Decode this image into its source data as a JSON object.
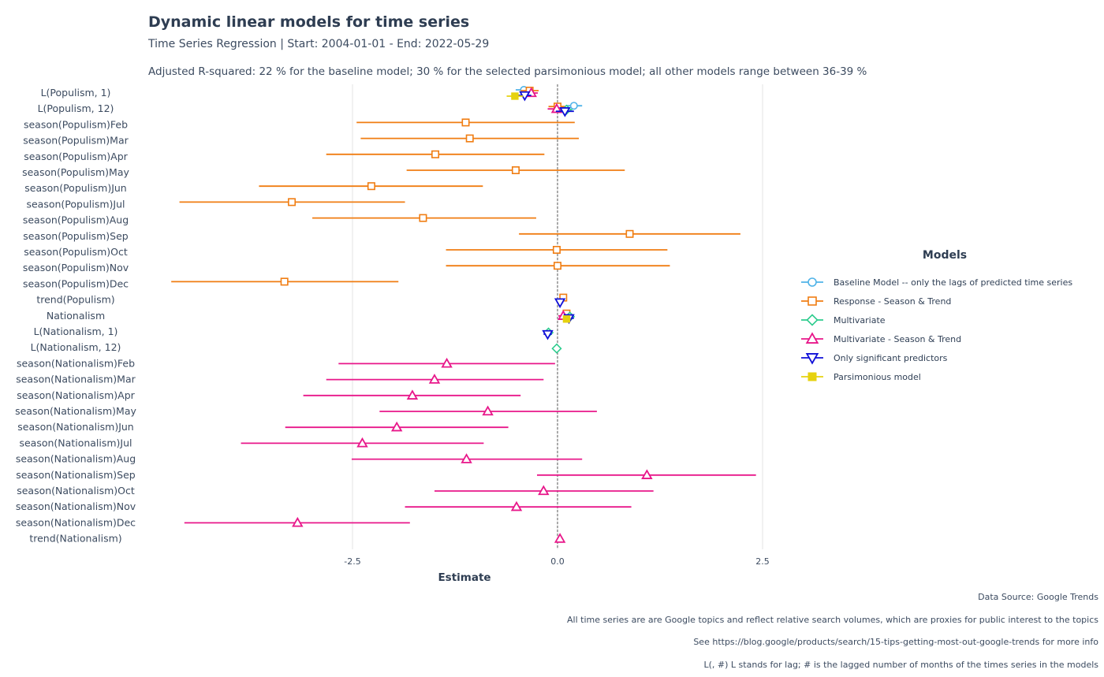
{
  "title": "Dynamic linear models for time series",
  "subtitle": "Time Series Regression | Start: 2004-01-01 - End: 2022-05-29",
  "subtitle2": "Adjusted R-squared: 22 % for the baseline model; 30 % for the selected parsimonious model; all other models range between 36-39 %",
  "captions": [
    "Data Source: Google Trends",
    "All time series are are Google topics and reflect relative search volumes, which are proxies for public interest to the topics",
    "See https://blog.google/products/search/15-tips-getting-most-out-google-trends for more info",
    "L(, #) L stands for lag; # is the lagged number of months of the times series in the models"
  ],
  "legend": {
    "title": "Models",
    "items": [
      {
        "name": "Baseline Model -- only the lags of predicted time series",
        "color": "#4fb3e8",
        "shape": "circle"
      },
      {
        "name": "Response - Season & Trend",
        "color": "#f07d12",
        "shape": "square"
      },
      {
        "name": "Multivariate",
        "color": "#2ecc8e",
        "shape": "diamond"
      },
      {
        "name": "Multivariate - Season & Trend",
        "color": "#e8178a",
        "shape": "triangle-up"
      },
      {
        "name": "Only significant predictors",
        "color": "#1010d8",
        "shape": "triangle-down"
      },
      {
        "name": "Parsimonious model",
        "color": "#e6d20f",
        "shape": "square-filled"
      }
    ]
  },
  "chart_data": {
    "type": "scatter",
    "subtype": "coefficient plot with confidence intervals",
    "xlabel": "Estimate",
    "ylabel": "",
    "xlim": [
      -5.0,
      4.0
    ],
    "xticks": [
      -2.5,
      0.0,
      2.5
    ],
    "xtick_labels": [
      "-2.5",
      "0.0",
      "2.5"
    ],
    "reference_line": 0,
    "grid": "vertical major lines",
    "legend_position": "right",
    "terms": [
      "L(Populism, 1)",
      "L(Populism, 12)",
      "season(Populism)Feb",
      "season(Populism)Mar",
      "season(Populism)Apr",
      "season(Populism)May",
      "season(Populism)Jun",
      "season(Populism)Jul",
      "season(Populism)Aug",
      "season(Populism)Sep",
      "season(Populism)Oct",
      "season(Populism)Nov",
      "season(Populism)Dec",
      "trend(Populism)",
      "Nationalism",
      "L(Nationalism, 1)",
      "L(Nationalism, 12)",
      "season(Nationalism)Feb",
      "season(Nationalism)Mar",
      "season(Nationalism)Apr",
      "season(Nationalism)May",
      "season(Nationalism)Jun",
      "season(Nationalism)Jul",
      "season(Nationalism)Aug",
      "season(Nationalism)Sep",
      "season(Nationalism)Oct",
      "season(Nationalism)Nov",
      "season(Nationalism)Dec",
      "trend(Nationalism)"
    ],
    "series": [
      {
        "name": "Baseline Model -- only the lags of predicted time series",
        "points": [
          {
            "term": "L(Populism, 1)",
            "estimate": -0.41,
            "low": -0.51,
            "high": -0.31
          },
          {
            "term": "L(Populism, 12)",
            "estimate": 0.2,
            "low": 0.1,
            "high": 0.3
          }
        ]
      },
      {
        "name": "Response - Season & Trend",
        "points": [
          {
            "term": "L(Populism, 1)",
            "estimate": -0.34,
            "low": -0.45,
            "high": -0.23
          },
          {
            "term": "L(Populism, 12)",
            "estimate": 0.0,
            "low": -0.11,
            "high": 0.11
          },
          {
            "term": "season(Populism)Feb",
            "estimate": -1.12,
            "low": -2.45,
            "high": 0.21
          },
          {
            "term": "season(Populism)Mar",
            "estimate": -1.07,
            "low": -2.4,
            "high": 0.26
          },
          {
            "term": "season(Populism)Apr",
            "estimate": -1.49,
            "low": -2.82,
            "high": -0.16
          },
          {
            "term": "season(Populism)May",
            "estimate": -0.51,
            "low": -1.84,
            "high": 0.82
          },
          {
            "term": "season(Populism)Jun",
            "estimate": -2.27,
            "low": -3.64,
            "high": -0.91
          },
          {
            "term": "season(Populism)Jul",
            "estimate": -3.24,
            "low": -4.61,
            "high": -1.86
          },
          {
            "term": "season(Populism)Aug",
            "estimate": -1.64,
            "low": -2.99,
            "high": -0.26
          },
          {
            "term": "season(Populism)Sep",
            "estimate": 0.88,
            "low": -0.47,
            "high": 2.23
          },
          {
            "term": "season(Populism)Oct",
            "estimate": -0.01,
            "low": -1.36,
            "high": 1.34
          },
          {
            "term": "season(Populism)Nov",
            "estimate": 0.0,
            "low": -1.36,
            "high": 1.37
          },
          {
            "term": "season(Populism)Dec",
            "estimate": -3.33,
            "low": -4.71,
            "high": -1.94
          },
          {
            "term": "trend(Populism)",
            "estimate": 0.07,
            "low": 0.03,
            "high": 0.11
          },
          {
            "term": "Nationalism",
            "estimate": 0.11,
            "low": 0.06,
            "high": 0.16
          }
        ]
      },
      {
        "name": "Multivariate",
        "points": [
          {
            "term": "L(Populism, 12)",
            "estimate": 0.11,
            "low": 0.04,
            "high": 0.18
          },
          {
            "term": "Nationalism",
            "estimate": 0.15,
            "low": 0.1,
            "high": 0.2
          },
          {
            "term": "L(Nationalism, 1)",
            "estimate": -0.11,
            "low": -0.16,
            "high": -0.06
          },
          {
            "term": "L(Nationalism, 12)",
            "estimate": -0.01,
            "low": -0.06,
            "high": 0.04
          }
        ]
      },
      {
        "name": "Multivariate - Season & Trend",
        "points": [
          {
            "term": "L(Populism, 1)",
            "estimate": -0.32,
            "low": -0.4,
            "high": -0.24
          },
          {
            "term": "L(Populism, 12)",
            "estimate": -0.01,
            "low": -0.12,
            "high": 0.1
          },
          {
            "term": "Nationalism",
            "estimate": 0.07,
            "low": 0.01,
            "high": 0.13
          },
          {
            "term": "season(Nationalism)Feb",
            "estimate": -1.35,
            "low": -2.67,
            "high": -0.03
          },
          {
            "term": "season(Nationalism)Mar",
            "estimate": -1.5,
            "low": -2.82,
            "high": -0.17
          },
          {
            "term": "season(Nationalism)Apr",
            "estimate": -1.77,
            "low": -3.1,
            "high": -0.45
          },
          {
            "term": "season(Nationalism)May",
            "estimate": -0.85,
            "low": -2.17,
            "high": 0.48
          },
          {
            "term": "season(Nationalism)Jun",
            "estimate": -1.96,
            "low": -3.32,
            "high": -0.6
          },
          {
            "term": "season(Nationalism)Jul",
            "estimate": -2.38,
            "low": -3.86,
            "high": -0.9
          },
          {
            "term": "season(Nationalism)Aug",
            "estimate": -1.11,
            "low": -2.51,
            "high": 0.3
          },
          {
            "term": "season(Nationalism)Sep",
            "estimate": 1.09,
            "low": -0.25,
            "high": 2.42
          },
          {
            "term": "season(Nationalism)Oct",
            "estimate": -0.17,
            "low": -1.5,
            "high": 1.17
          },
          {
            "term": "season(Nationalism)Nov",
            "estimate": -0.5,
            "low": -1.86,
            "high": 0.9
          },
          {
            "term": "season(Nationalism)Dec",
            "estimate": -3.17,
            "low": -4.55,
            "high": -1.8
          },
          {
            "term": "trend(Nationalism)",
            "estimate": 0.03,
            "low": 0.0,
            "high": 0.06
          }
        ]
      },
      {
        "name": "Only significant predictors",
        "points": [
          {
            "term": "L(Populism, 1)",
            "estimate": -0.4,
            "low": -0.48,
            "high": -0.32
          },
          {
            "term": "L(Populism, 12)",
            "estimate": 0.09,
            "low": -0.02,
            "high": 0.2
          },
          {
            "term": "trend(Populism)",
            "estimate": 0.03,
            "low": -0.01,
            "high": 0.07
          },
          {
            "term": "Nationalism",
            "estimate": 0.14,
            "low": 0.08,
            "high": 0.2
          },
          {
            "term": "L(Nationalism, 1)",
            "estimate": -0.12,
            "low": -0.17,
            "high": -0.07
          }
        ]
      },
      {
        "name": "Parsimonious model",
        "points": [
          {
            "term": "L(Populism, 1)",
            "estimate": -0.52,
            "low": -0.62,
            "high": -0.42
          },
          {
            "term": "Nationalism",
            "estimate": 0.11,
            "low": 0.06,
            "high": 0.16
          }
        ]
      }
    ]
  }
}
